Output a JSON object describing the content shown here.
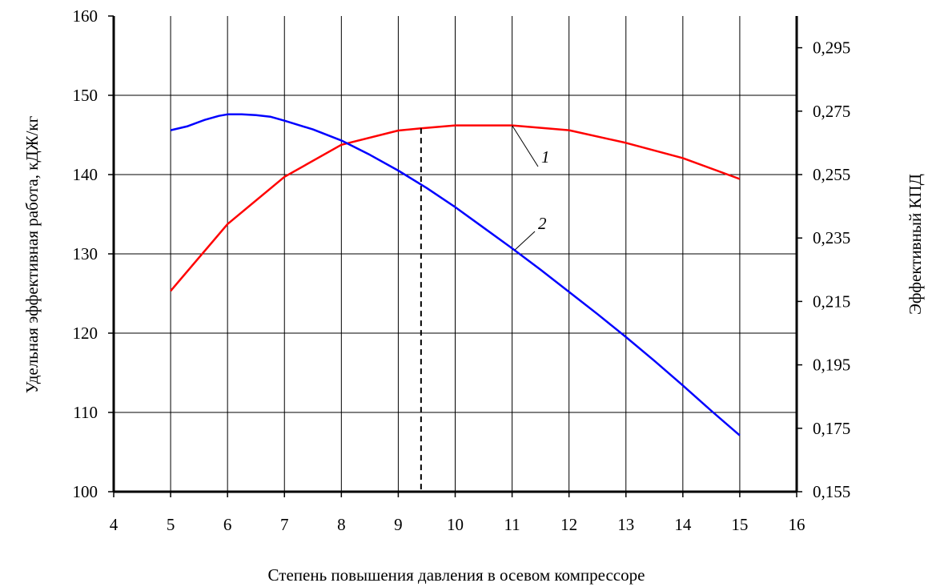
{
  "chart_data": {
    "type": "line",
    "title": "",
    "xlabel": "Степень повышения давления в осевом компрессоре",
    "ylabel_left": "Удельная эффективная работа, кДЖ/кг",
    "ylabel_right": "Эффективный КПД",
    "xlim": [
      4,
      16
    ],
    "ylim_left": [
      100,
      160
    ],
    "ylim_right": [
      0.155,
      0.305
    ],
    "x_ticks": [
      "4",
      "5",
      "6",
      "7",
      "8",
      "9",
      "10",
      "11",
      "12",
      "13",
      "14",
      "15",
      "16"
    ],
    "y_left_ticks": [
      "100",
      "110",
      "120",
      "130",
      "140",
      "150",
      "160"
    ],
    "y_right_ticks": [
      "0,155",
      "0,175",
      "0,195",
      "0,215",
      "0,235",
      "0,255",
      "0,275",
      "0,295"
    ],
    "grid": true,
    "series": [
      {
        "name": "1",
        "axis": "right",
        "color": "#ff0000",
        "x": [
          5,
          6,
          7,
          8,
          9,
          9.4,
          10,
          11,
          12,
          13,
          14,
          15
        ],
        "y": [
          0.2183,
          0.2394,
          0.2543,
          0.2644,
          0.2689,
          0.2696,
          0.2705,
          0.2705,
          0.269,
          0.265,
          0.2602,
          0.2536
        ]
      },
      {
        "name": "2",
        "axis": "left",
        "color": "#0000ff",
        "x": [
          5,
          5.3,
          5.6,
          5.85,
          6,
          6.25,
          6.5,
          6.75,
          7,
          7.5,
          8,
          8.5,
          9,
          9.5,
          10,
          10.5,
          11,
          11.5,
          12,
          12.5,
          13,
          13.5,
          14,
          14.5,
          15
        ],
        "y": [
          145.6,
          146.1,
          146.9,
          147.4,
          147.6,
          147.6,
          147.5,
          147.3,
          146.8,
          145.7,
          144.3,
          142.5,
          140.5,
          138.3,
          135.9,
          133.3,
          130.7,
          128.0,
          125.2,
          122.4,
          119.5,
          116.5,
          113.4,
          110.2,
          107.1
        ]
      }
    ],
    "annotations": [
      {
        "text": "1",
        "curve": "1"
      },
      {
        "text": "2",
        "curve": "2"
      }
    ],
    "reference_line": {
      "x": 9.4,
      "style": "dashed"
    }
  }
}
